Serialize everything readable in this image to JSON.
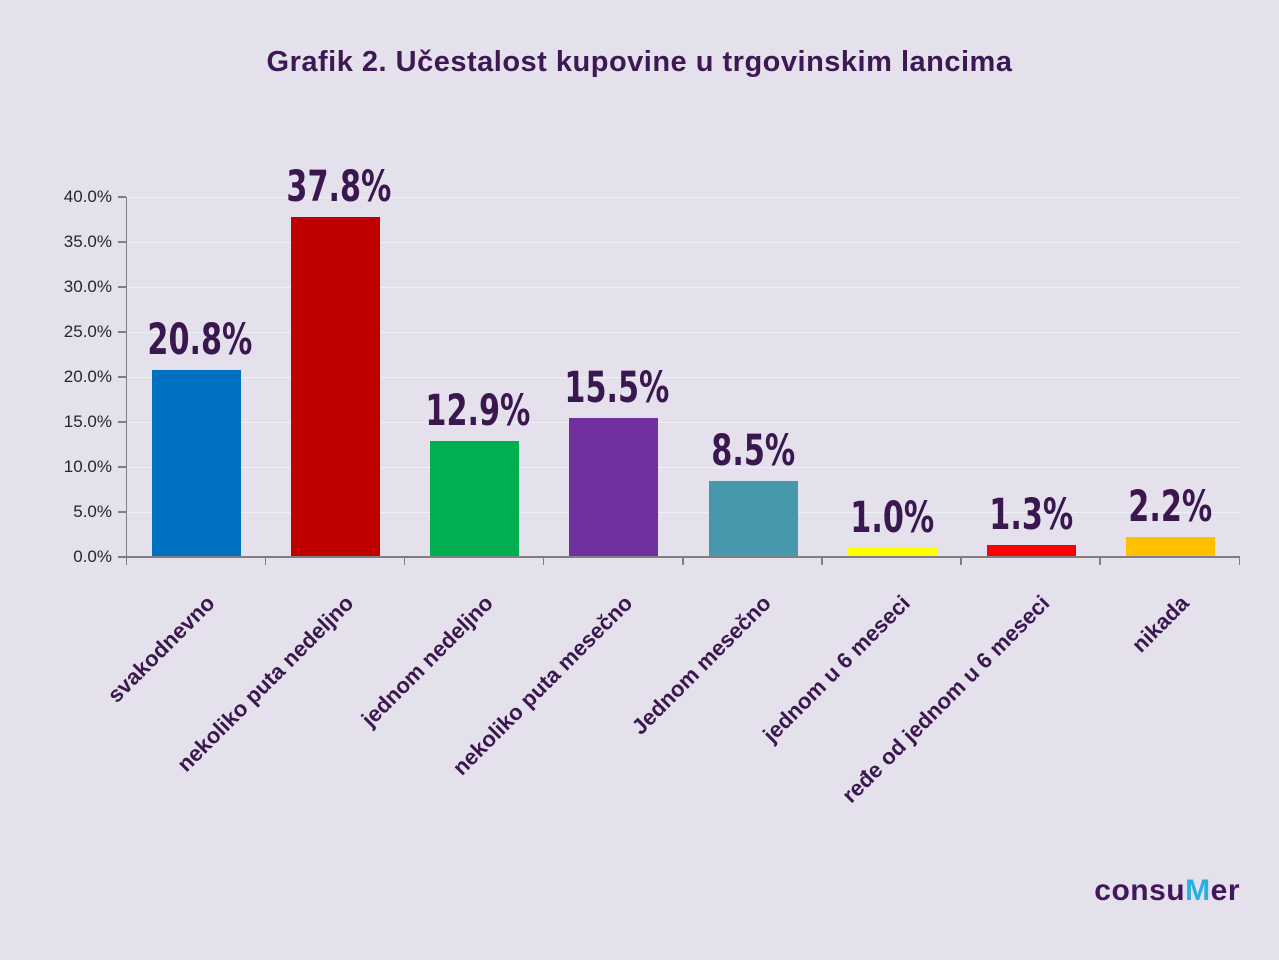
{
  "title": "Grafik 2. Učestalost kupovine u trgovinskim lancima",
  "chart_data": {
    "type": "bar",
    "title": "Grafik 2. Učestalost kupovine u trgovinskim lancima",
    "categories": [
      "svakodnevno",
      "nekoliko puta nedeljno",
      "jednom nedeljno",
      "nekoliko puta mesečno",
      "Jednom mesečno",
      "jednom u 6 meseci",
      "ređe od jednom u 6 meseci",
      "nikada"
    ],
    "values": [
      20.8,
      37.8,
      12.9,
      15.5,
      8.5,
      1.0,
      1.3,
      2.2
    ],
    "value_labels": [
      "20.8%",
      "37.8%",
      "12.9%",
      "15.5%",
      "8.5%",
      "1.0%",
      "1.3%",
      "2.2%"
    ],
    "bar_colors": [
      "#0070c0",
      "#c00000",
      "#00b050",
      "#7030a0",
      "#4699ad",
      "#ffff00",
      "#ff0000",
      "#ffc000"
    ],
    "xlabel": "",
    "ylabel": "",
    "ylim": [
      0,
      40
    ],
    "ytick_step": 5,
    "ytick_labels": [
      "0.0%",
      "5.0%",
      "10.0%",
      "15.0%",
      "20.0%",
      "25.0%",
      "30.0%",
      "35.0%",
      "40.0%"
    ],
    "grid": true,
    "legend": "none",
    "x_label_rotation_deg": 45
  },
  "logo": {
    "text_before": "consu",
    "accent_letter": "M",
    "text_after": "er"
  },
  "colors": {
    "background": "#e4e0ec",
    "title_text": "#3e1852",
    "value_label_text": "#3a174e",
    "x_label_text": "#3a174e",
    "y_tick_text": "#262626",
    "axis_line": "#7f7f7f",
    "gridline": "#f2f0f7",
    "logo_main": "#42175c",
    "logo_accent": "#29b0e3"
  }
}
